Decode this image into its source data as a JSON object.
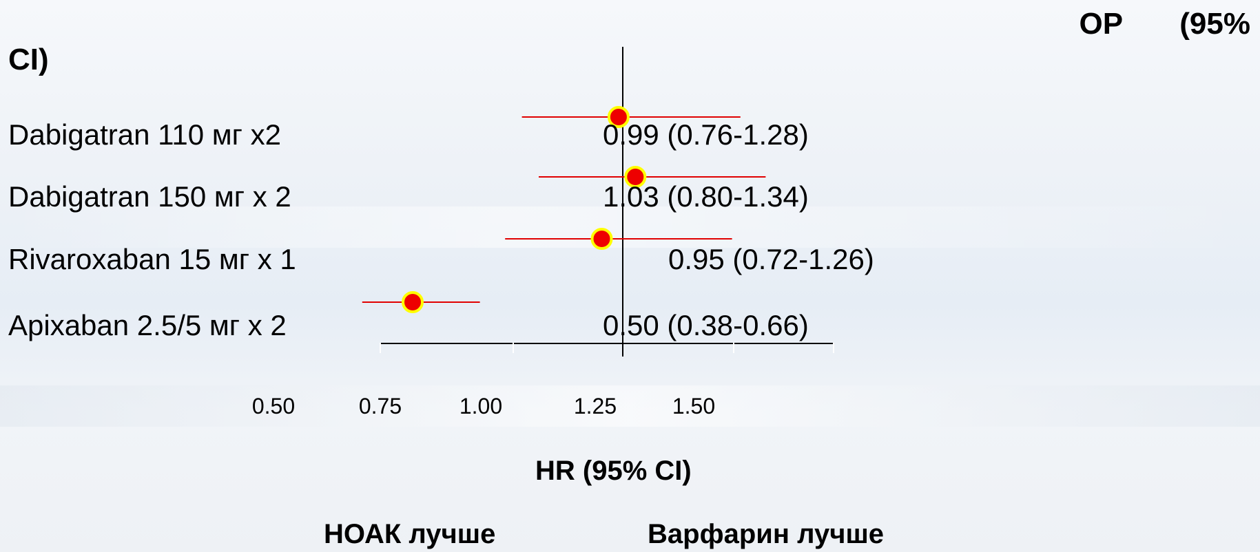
{
  "header": {
    "right": "ОР (95%",
    "left": "CI)"
  },
  "chart_data": {
    "type": "forest",
    "rows": [
      {
        "label": "Dabigatran 110 мг х2",
        "hr_text": "0.99 (0.76-1.28)",
        "hr": 0.99,
        "lo": 0.76,
        "hi": 1.28
      },
      {
        "label": "Dabigatran 150 мг х 2",
        "hr_text": "1.03 (0.80-1.34)",
        "hr": 1.03,
        "lo": 0.8,
        "hi": 1.34
      },
      {
        "label": "Rivaroxaban 15 мг х 1",
        "hr_text": "0.95 (0.72-1.26)",
        "hr": 0.95,
        "lo": 0.72,
        "hi": 1.26
      },
      {
        "label": "Apixaban 2.5/5 мг х 2",
        "hr_text": "0.50 (0.38-0.66)",
        "hr": 0.5,
        "lo": 0.38,
        "hi": 0.66
      }
    ],
    "ticks": [
      "0.50",
      "0.75",
      "1.00",
      "1.25",
      "1.50"
    ],
    "reference": 1.0,
    "xlabel": "HR (95% CI)",
    "favors_left": "НОАК лучше",
    "favors_right": "Варфарин лучше",
    "colors": {
      "ci_line": "#e00000",
      "point_fill": "#ee0000",
      "point_ring": "#ffff00",
      "axis": "#000000"
    }
  }
}
